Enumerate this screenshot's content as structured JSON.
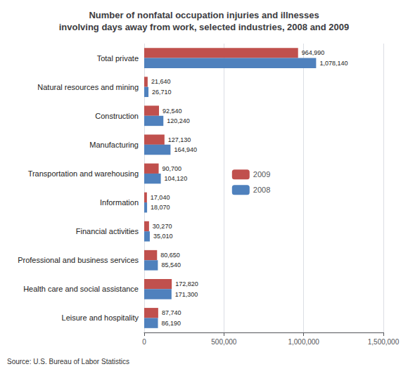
{
  "chart_data": {
    "type": "bar",
    "orientation": "horizontal",
    "title": "Number of nonfatal occupation injuries and illnesses\ninvolving days away from work, selected industries, 2008 and 2009",
    "categories": [
      "Total private",
      "Natural resources and mining",
      "Construction",
      "Manufacturing",
      "Transportation and warehousing",
      "Information",
      "Financial activities",
      "Professional and business services",
      "Health care and social assistance",
      "Leisure and hospitality"
    ],
    "series": [
      {
        "name": "2009",
        "color": "#C0504D",
        "values": [
          964990,
          21640,
          92540,
          127130,
          90700,
          17040,
          30270,
          80650,
          172820,
          87740
        ],
        "value_labels": [
          "964,990",
          "21,640",
          "92,540",
          "127,130",
          "90,700",
          "17,040",
          "30,270",
          "80,650",
          "172,820",
          "87,740"
        ]
      },
      {
        "name": "2008",
        "color": "#4F81BD",
        "values": [
          1078140,
          26710,
          120240,
          164940,
          104120,
          18070,
          35010,
          85540,
          171300,
          86190
        ],
        "value_labels": [
          "1,078,140",
          "26,710",
          "120,240",
          "164,940",
          "104,120",
          "18,070",
          "35,010",
          "85,540",
          "171,300",
          "86,190"
        ]
      }
    ],
    "xlim": [
      0,
      1500000
    ],
    "xticks": [
      0,
      {
        "value": 500000,
        "label": "500,000"
      },
      {
        "value": 1000000,
        "label": "1,000,000"
      },
      {
        "value": 1500000,
        "label": "1,500,000"
      }
    ],
    "grid": true,
    "legend": "center",
    "data_labels": true,
    "annotations": [
      "Source: U.S. Bureau of Labor Statistics"
    ]
  }
}
